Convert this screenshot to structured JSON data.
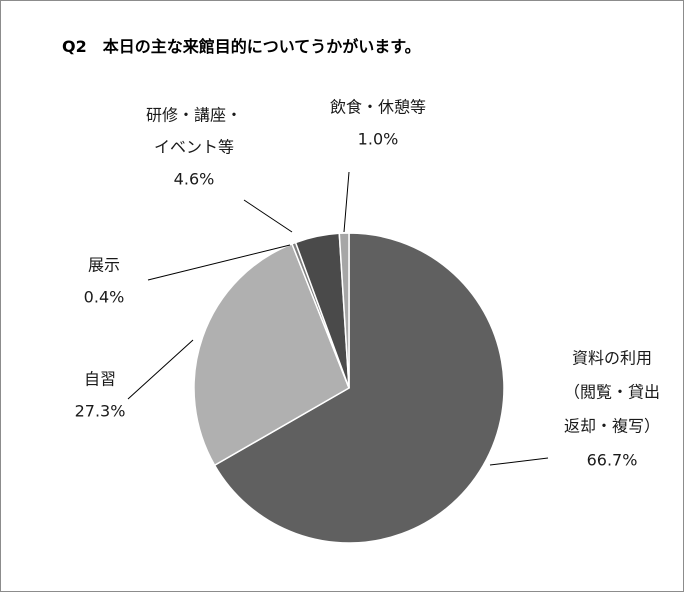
{
  "chart_data": {
    "type": "pie",
    "title": "Q2　本日の主な来館目的についてうかがいます。",
    "slices": [
      {
        "label_lines": [
          "資料の利用",
          "（閲覧・貸出",
          "返却・複写）"
        ],
        "value": 66.7,
        "value_label": "66.7%",
        "color": "#606060"
      },
      {
        "label_lines": [
          "自習"
        ],
        "value": 27.3,
        "value_label": "27.3%",
        "color": "#b0b0b0"
      },
      {
        "label_lines": [
          "展示"
        ],
        "value": 0.4,
        "value_label": "0.4%",
        "color": "#7f7f7f"
      },
      {
        "label_lines": [
          "研修・講座・",
          "イベント等"
        ],
        "value": 4.6,
        "value_label": "4.6%",
        "color": "#4a4a4a"
      },
      {
        "label_lines": [
          "飲食・休憩等"
        ],
        "value": 1.0,
        "value_label": "1.0%",
        "color": "#a6a6a6"
      }
    ],
    "legend": "none"
  }
}
